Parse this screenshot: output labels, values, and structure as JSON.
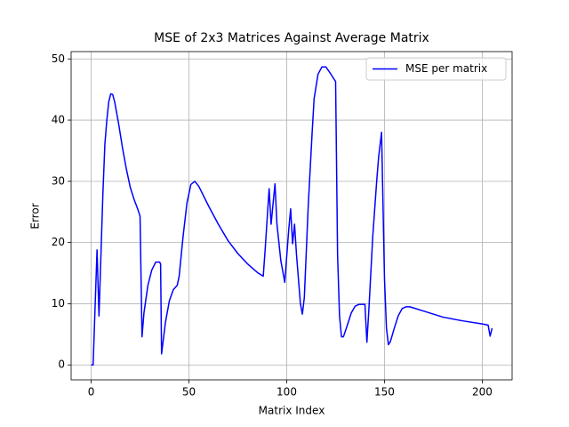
{
  "chart_data": {
    "type": "line",
    "title": "MSE of 2x3 Matrices Against Average Matrix",
    "x_label": "Matrix Index",
    "y_label": "Error",
    "x": [
      0,
      1,
      3,
      4,
      6,
      7,
      8,
      9,
      10,
      11,
      12,
      14,
      16,
      18,
      20,
      22,
      24,
      25,
      26,
      27,
      29,
      31,
      33,
      35,
      35.5,
      36,
      38,
      40,
      42,
      44,
      45,
      47,
      49,
      51,
      53,
      55,
      60,
      65,
      70,
      75,
      80,
      85,
      88,
      89,
      91,
      92,
      94,
      95,
      97,
      99,
      101,
      102,
      103,
      104,
      105,
      107,
      108,
      109,
      111,
      113,
      114,
      116,
      118,
      120,
      122,
      124,
      125,
      126,
      127,
      128,
      129,
      131,
      133,
      135,
      137,
      139,
      140,
      141,
      142,
      144,
      146,
      147,
      148.5,
      149,
      150,
      151,
      152,
      153,
      155,
      157,
      159,
      161,
      163,
      170,
      180,
      190,
      200,
      203,
      204,
      205
    ],
    "series": [
      {
        "name": "MSE per matrix",
        "color": "#0000ff",
        "values": [
          0,
          0,
          18.8,
          8,
          28,
          36,
          40,
          43,
          44.3,
          44.2,
          43,
          39.5,
          35.5,
          32,
          29,
          27,
          25.3,
          24.3,
          4.6,
          8.5,
          13,
          15.5,
          16.8,
          16.8,
          16.5,
          1.8,
          7,
          10.5,
          12.3,
          13,
          14.5,
          21,
          26.5,
          29.5,
          30,
          29.2,
          26,
          23,
          20.3,
          18.2,
          16.5,
          15.1,
          14.5,
          19,
          28.8,
          23,
          29.6,
          23,
          17,
          13.5,
          22,
          25.5,
          19.8,
          23,
          18,
          10,
          8.3,
          11,
          26,
          38,
          43.5,
          47.5,
          48.7,
          48.7,
          47.8,
          46.8,
          46.3,
          18,
          8,
          4.6,
          4.6,
          6.5,
          8.5,
          9.6,
          9.9,
          9.9,
          9.9,
          3.7,
          9,
          21,
          30,
          34,
          38,
          30,
          14,
          6,
          3.3,
          3.8,
          6,
          8,
          9.2,
          9.5,
          9.5,
          8.8,
          7.8,
          7.2,
          6.7,
          6.5,
          4.7,
          6
        ]
      }
    ],
    "xlim": [
      -10.25,
      215.25
    ],
    "ylim": [
      -2.44,
      51.2
    ],
    "xticks": [
      0,
      50,
      100,
      150,
      200
    ],
    "yticks": [
      0,
      10,
      20,
      30,
      40,
      50
    ],
    "grid": true,
    "legend": "upper right"
  }
}
